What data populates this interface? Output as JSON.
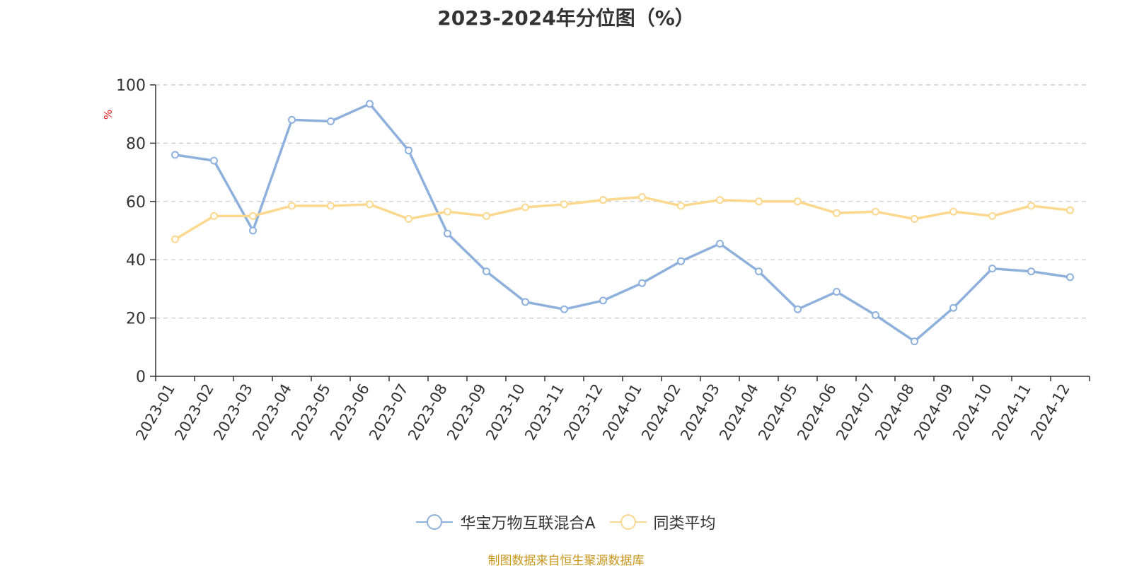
{
  "chart_data": {
    "type": "line",
    "title": "2023-2024年分位图（%）",
    "ylabel": "%",
    "xlabel": "",
    "ylim": [
      0,
      100
    ],
    "yticks": [
      0,
      20,
      40,
      60,
      80,
      100
    ],
    "grid": true,
    "legend_position": "bottom",
    "categories": [
      "2023-01",
      "2023-02",
      "2023-03",
      "2023-04",
      "2023-05",
      "2023-06",
      "2023-07",
      "2023-08",
      "2023-09",
      "2023-10",
      "2023-11",
      "2023-12",
      "2024-01",
      "2024-02",
      "2024-03",
      "2024-04",
      "2024-05",
      "2024-06",
      "2024-07",
      "2024-08",
      "2024-09",
      "2024-10",
      "2024-11",
      "2024-12"
    ],
    "series": [
      {
        "name": "华宝万物互联混合A",
        "color": "#8eb0dc",
        "values": [
          76,
          74,
          50,
          88,
          87.5,
          93.5,
          77.5,
          49,
          36,
          25.5,
          23,
          26,
          32,
          39.5,
          45.5,
          36,
          23,
          29,
          21,
          12,
          23.5,
          37,
          36,
          34
        ]
      },
      {
        "name": "同类平均",
        "color": "#fcd88f",
        "values": [
          47,
          55,
          55,
          58.5,
          58.5,
          59,
          54,
          56.5,
          55,
          58,
          59,
          60.5,
          61.5,
          58.5,
          60.5,
          60,
          60,
          56,
          56.5,
          54,
          56.5,
          55,
          58.5,
          57
        ]
      }
    ]
  },
  "footer": {
    "source_note": "制图数据来自恒生聚源数据库"
  }
}
